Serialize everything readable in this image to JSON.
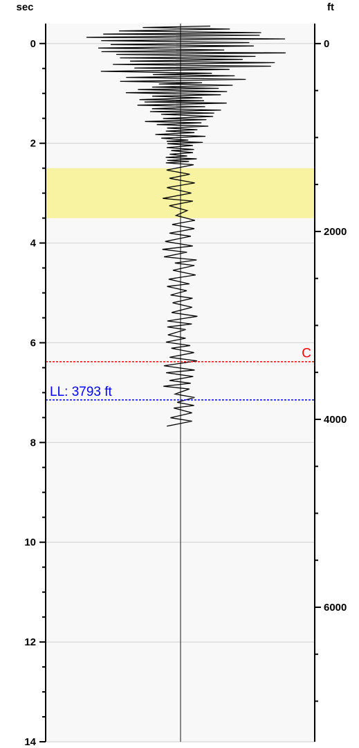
{
  "chart_data": {
    "type": "line",
    "left_axis": {
      "unit": "sec",
      "range": [
        -0.4,
        14
      ],
      "ticks": [
        "0",
        "2",
        "4",
        "6",
        "8",
        "10",
        "12",
        "14"
      ]
    },
    "right_axis": {
      "unit": "ft",
      "range": [
        -213,
        7432
      ],
      "ticks": [
        "0",
        "2000",
        "4000",
        "6000"
      ]
    },
    "grid": "horizontal at major left ticks",
    "highlight_band": {
      "from": 2.5,
      "to": 3.5,
      "color": "#f7f3a0"
    },
    "markers": [
      {
        "label": "C",
        "depth_ft": 3386,
        "color": "#ff0000",
        "label_side": "right"
      },
      {
        "label": "LL: 3793 ft",
        "depth_ft": 3793,
        "color": "#0000ff",
        "label_side": "left"
      }
    ],
    "trace": {
      "color": "#000000",
      "baseline_color": "#555555",
      "start": -0.35,
      "end": 7.75,
      "amplitude_profile": [
        [
          -0.35,
          1.8
        ],
        [
          0.0,
          2.8
        ],
        [
          0.3,
          2.6
        ],
        [
          0.7,
          1.6
        ],
        [
          1.2,
          1.1
        ],
        [
          1.8,
          0.7
        ],
        [
          2.4,
          0.4
        ],
        [
          3.5,
          0.4
        ],
        [
          4.5,
          0.35
        ],
        [
          6.0,
          0.4
        ],
        [
          6.8,
          0.45
        ],
        [
          7.75,
          0.4
        ]
      ]
    }
  },
  "colors": {
    "plot_background": "#f8f8f8",
    "grid": "#d6d6d6",
    "axis": "#000000"
  }
}
